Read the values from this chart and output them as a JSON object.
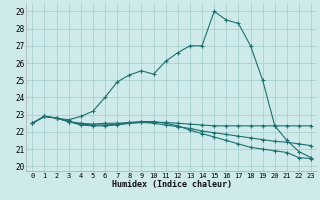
{
  "xlabel": "Humidex (Indice chaleur)",
  "xlim": [
    -0.5,
    23.5
  ],
  "ylim": [
    19.7,
    29.5
  ],
  "bg_color": "#ceeaea",
  "grid_color": "#a8d0d0",
  "line_color": "#1e7070",
  "xticks": [
    0,
    1,
    2,
    3,
    4,
    5,
    6,
    7,
    8,
    9,
    10,
    11,
    12,
    13,
    14,
    15,
    16,
    17,
    18,
    19,
    20,
    21,
    22,
    23
  ],
  "yticks": [
    20,
    21,
    22,
    23,
    24,
    25,
    26,
    27,
    28,
    29
  ],
  "series": [
    [
      22.5,
      22.9,
      22.8,
      22.6,
      22.4,
      22.35,
      22.35,
      22.4,
      22.5,
      22.55,
      22.55,
      22.55,
      22.5,
      22.45,
      22.4,
      22.35,
      22.35,
      22.35,
      22.35,
      22.35,
      22.35,
      22.35,
      22.35,
      22.35
    ],
    [
      22.5,
      22.9,
      22.8,
      22.6,
      22.45,
      22.4,
      22.4,
      22.45,
      22.5,
      22.55,
      22.5,
      22.4,
      22.3,
      22.2,
      22.05,
      21.95,
      21.85,
      21.75,
      21.65,
      21.55,
      21.45,
      21.4,
      21.3,
      21.2
    ],
    [
      22.5,
      22.9,
      22.8,
      22.6,
      22.5,
      22.45,
      22.5,
      22.5,
      22.55,
      22.6,
      22.6,
      22.5,
      22.35,
      22.1,
      21.9,
      21.7,
      21.5,
      21.3,
      21.1,
      21.0,
      20.9,
      20.8,
      20.5,
      20.45
    ],
    [
      22.5,
      22.9,
      22.8,
      22.7,
      22.9,
      23.2,
      24.0,
      24.9,
      25.3,
      25.55,
      25.35,
      26.1,
      26.6,
      27.0,
      27.0,
      29.0,
      28.5,
      28.3,
      27.0,
      25.0,
      22.35,
      21.5,
      20.85,
      20.5
    ]
  ]
}
